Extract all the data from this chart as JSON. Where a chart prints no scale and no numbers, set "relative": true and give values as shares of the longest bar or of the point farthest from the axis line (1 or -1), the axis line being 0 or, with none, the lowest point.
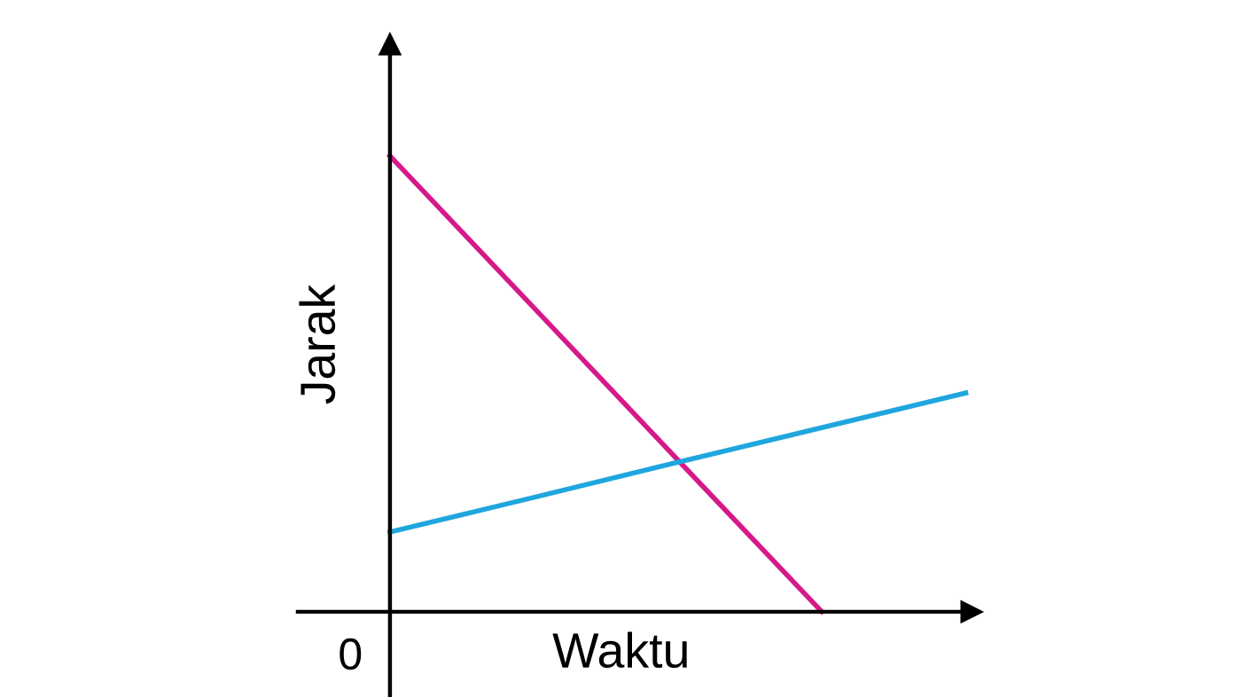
{
  "chart_data": {
    "type": "line",
    "relative": true,
    "xlabel": "Waktu",
    "ylabel": "Jarak",
    "annotations": [
      "0"
    ],
    "categories": [
      null,
      null,
      null,
      null,
      null
    ],
    "series": [
      {
        "color": "#d6198a",
        "values": [
          1,
          0.667,
          0.333,
          0,
          null
        ]
      },
      {
        "color": "#1fa6de",
        "values": [
          0.175,
          0.251,
          0.328,
          0.404,
          0.48
        ]
      }
    ],
    "legend": false,
    "marker": "none",
    "line_style": "solid"
  }
}
